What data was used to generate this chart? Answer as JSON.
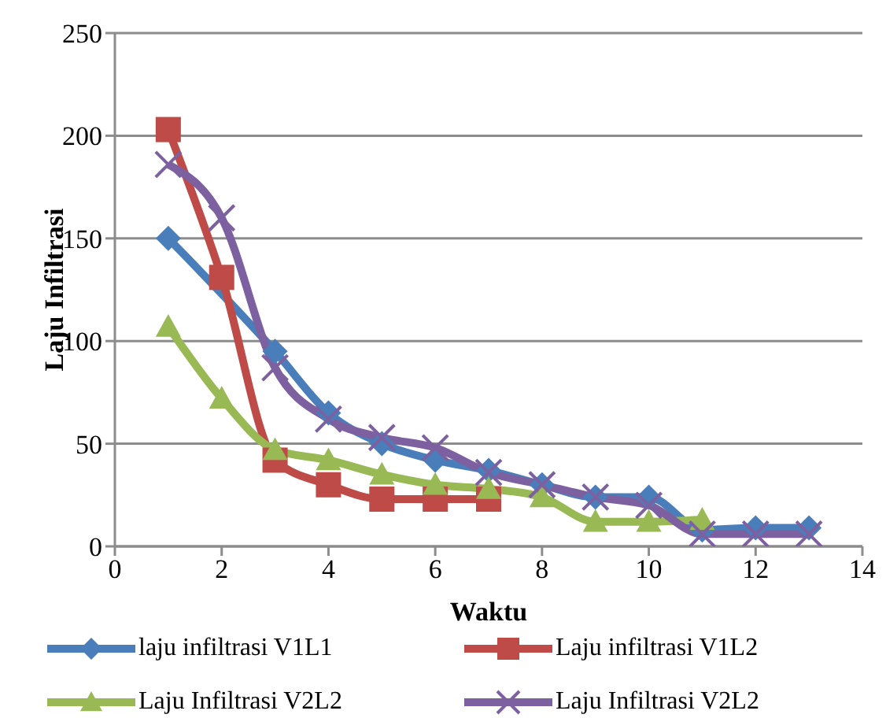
{
  "chart_data": {
    "type": "line",
    "xlabel": "Waktu",
    "ylabel": "Laju Infiltrasi",
    "xlim": [
      0,
      14
    ],
    "xticks": [
      0,
      2,
      4,
      6,
      8,
      10,
      12,
      14
    ],
    "ylim": [
      0,
      250
    ],
    "yticks": [
      0,
      50,
      100,
      150,
      200,
      250
    ],
    "grid": "y",
    "legend": "bottom",
    "line_style": "solid",
    "series": [
      {
        "name": "laju infiltrasi V1L1",
        "color": "#4a7ebb",
        "marker": "diamond",
        "x": [
          1,
          2,
          3,
          4,
          5,
          6,
          7,
          8,
          9,
          10,
          11,
          12,
          13
        ],
        "values": [
          150,
          null,
          95,
          65,
          50,
          42,
          37,
          30,
          24,
          24,
          8,
          9,
          9
        ]
      },
      {
        "name": "Laju infiltrasi V1L2",
        "color": "#be4b48",
        "marker": "square",
        "x": [
          1,
          2,
          3,
          4,
          5,
          6,
          7
        ],
        "values": [
          203,
          131,
          42,
          30,
          23,
          23,
          23
        ]
      },
      {
        "name": "Laju Infiltrasi V2L2",
        "color": "#98b954",
        "marker": "triangle",
        "x": [
          1,
          2,
          3,
          4,
          5,
          6,
          7,
          8,
          9,
          10,
          11
        ],
        "values": [
          107,
          72,
          47,
          42,
          35,
          30,
          28,
          24,
          12,
          12,
          13
        ]
      },
      {
        "name": "Laju Infiltrasi V2L2",
        "color": "#7d60a0",
        "marker": "cross",
        "x": [
          1,
          2,
          3,
          4,
          5,
          6,
          7,
          8,
          9,
          10,
          11,
          12,
          13
        ],
        "values": [
          186,
          160,
          87,
          62,
          53,
          48,
          36,
          30,
          24,
          20,
          6,
          6,
          6
        ]
      }
    ]
  }
}
